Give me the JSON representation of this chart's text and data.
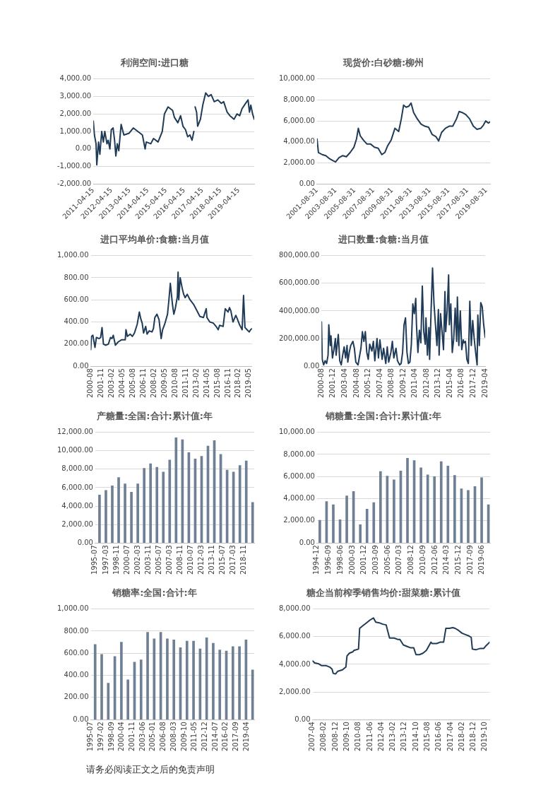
{
  "chart_data": [
    {
      "type": "line",
      "title": "利润空间:进口糖",
      "color": "#1f3b57",
      "grid": "y",
      "x": [
        "2011-04-15",
        "2011-05-07",
        "2011-06-09",
        "2011-06-24",
        "2011-07-29",
        "2011-08-25",
        "2011-10-01",
        "2011-11-03",
        "2011-12-02",
        "2012-01-15",
        "2012-02-10",
        "2012-03-13",
        "2012-04-11",
        "2012-05-17",
        "2012-06-16",
        "2012-07-11",
        "2012-08-10",
        "2012-09-09",
        "2012-10-26",
        "2012-12-20",
        "2013-04-04",
        "2013-06-27",
        "2013-09-27",
        "2013-12-27",
        "2014-02-21",
        "2014-03-13",
        "2014-06-13",
        "2014-08-07",
        "2014-11-07",
        "2015-01-30",
        "2015-03-13",
        "2015-05-25",
        "2015-08-25",
        "2015-10-01",
        "2015-12-09",
        "2016-02-03",
        "2016-03-20",
        "2016-05-10",
        "2016-06-24",
        "2016-08-07",
        "2016-09-20",
        "2016-10-26",
        "2016-11-10",
        "2016-11-21",
        "2016-12-20",
        "2017-01-11",
        "2017-03-06",
        "2017-04-22",
        "2017-06-20",
        "2017-08-14",
        "2017-10-08",
        "2017-12-09",
        "2018-02-21",
        "2018-04-30",
        "2018-06-16",
        "2018-08-25",
        "2018-10-19",
        "2019-01-11",
        "2019-03-09",
        "2019-05-03",
        "2019-06-20",
        "2019-08-29",
        "2019-10-19",
        "2019-11-17",
        "2019-12-13",
        "2020-01-19",
        "2020-02-21"
      ],
      "values": [
        1600,
        800,
        300,
        -900,
        400,
        -300,
        1000,
        400,
        1000,
        300,
        500,
        0,
        1100,
        1200,
        500,
        -400,
        300,
        -100,
        1400,
        800,
        900,
        1200,
        1000,
        800,
        0,
        400,
        300,
        600,
        400,
        1000,
        2000,
        2400,
        2200,
        1800,
        1500,
        1900,
        1300,
        1100,
        700,
        800,
        500,
        1000,
        null,
        2400,
        2100,
        1300,
        1700,
        2500,
        3200,
        3000,
        3100,
        2700,
        2800,
        2600,
        2700,
        2100,
        1900,
        1700,
        2000,
        1900,
        2300,
        2600,
        2800,
        2100,
        2500,
        2000,
        1700
      ],
      "xlim": [
        "2011-04-15",
        "2020-02-21"
      ],
      "xticks": [
        "2011-04-15",
        "2012-04-15",
        "2013-04-15",
        "2014-04-15",
        "2015-04-15",
        "2016-04-15",
        "2017-04-15",
        "2018-04-15",
        "2019-04-15"
      ],
      "ylim": [
        -2000,
        4000
      ],
      "yticks": [
        {
          "value": -2000,
          "label": "-2,000.00"
        },
        {
          "value": -1000,
          "label": "-1,000.00"
        },
        {
          "value": 0,
          "label": "0.00"
        },
        {
          "value": 1000,
          "label": "1,000.00"
        },
        {
          "value": 2000,
          "label": "2,000.00"
        },
        {
          "value": 3000,
          "label": "3,000.00"
        },
        {
          "value": 4000,
          "label": "4,000.00"
        }
      ]
    },
    {
      "type": "line",
      "title": "现货价:白砂糖:柳州",
      "color": "#1f3b57",
      "grid": "y",
      "x": [
        "2001-08-31",
        "2001-10-26",
        "2002-03-20",
        "2002-08-10",
        "2003-01-04",
        "2003-05-28",
        "2003-08-21",
        "2004-01-01",
        "2004-05-25",
        "2004-10-15",
        "2005-03-09",
        "2005-08-03",
        "2005-11-14",
        "2006-01-22",
        "2006-04-04",
        "2006-07-29",
        "2006-12-24",
        "2007-05-14",
        "2007-10-08",
        "2008-03-02",
        "2008-07-22",
        "2008-11-17",
        "2009-02-28",
        "2009-07-22",
        "2009-12-13",
        "2010-05-07",
        "2010-08-18",
        "2010-11-14",
        "2011-02-21",
        "2011-06-02",
        "2011-08-31",
        "2011-12-09",
        "2012-04-29",
        "2012-09-23",
        "2013-02-17",
        "2013-07-11",
        "2013-12-02",
        "2014-04-26",
        "2014-08-07",
        "2014-11-28",
        "2015-04-22",
        "2015-09-16",
        "2016-02-07",
        "2016-07-01",
        "2016-10-11",
        "2017-02-07",
        "2017-06-27",
        "2017-11-21",
        "2018-04-15",
        "2018-09-05",
        "2019-01-30",
        "2019-05-10",
        "2019-08-07",
        "2019-11-14",
        "2020-01-26"
      ],
      "values": [
        4300,
        3000,
        2800,
        2700,
        2400,
        2200,
        2100,
        2500,
        2700,
        2600,
        3000,
        3500,
        4300,
        5300,
        4600,
        4200,
        3800,
        3800,
        3500,
        3400,
        2800,
        3000,
        3600,
        4200,
        5300,
        5000,
        6200,
        7500,
        7300,
        7400,
        7700,
        6800,
        6200,
        5700,
        5500,
        5400,
        4700,
        4500,
        4100,
        4900,
        5300,
        5500,
        5500,
        6200,
        6900,
        6800,
        6600,
        6200,
        5500,
        5200,
        5300,
        5600,
        6000,
        5800,
        5900
      ],
      "xlim": [
        "2001-08-31",
        "2020-01-26"
      ],
      "xticks": [
        "2001-08-31",
        "2003-08-31",
        "2005-08-31",
        "2007-08-31",
        "2009-08-31",
        "2011-08-31",
        "2013-08-31",
        "2015-08-31",
        "2017-08-31",
        "2019-08-31"
      ],
      "ylim": [
        0,
        10000
      ],
      "yticks": [
        {
          "value": 0,
          "label": "0.00"
        },
        {
          "value": 2000,
          "label": "2,000.00"
        },
        {
          "value": 4000,
          "label": "4,000.00"
        },
        {
          "value": 6000,
          "label": "6,000.00"
        },
        {
          "value": 8000,
          "label": "8,000.00"
        },
        {
          "value": 10000,
          "label": "10,000.00"
        }
      ]
    },
    {
      "type": "line",
      "title": "进口平均单价:食糖:当月值",
      "color": "#1f3b57",
      "grid": "y",
      "x": [
        "2000-08",
        "2000-09",
        "2000-11",
        "2001-02",
        "2001-04",
        "2001-08",
        "2001-10",
        "2001-12",
        "2002-02",
        "2002-05",
        "2002-09",
        "2002-12",
        "2003-02",
        "2003-04",
        "2003-07",
        "2003-11",
        "2004-04",
        "2004-09",
        "2004-10",
        "2004-12",
        "2005-04",
        "2005-07",
        "2005-10",
        "2006-02",
        "2006-05",
        "2006-07",
        "2006-09",
        "2006-11",
        "2007-02",
        "2007-04",
        "2007-07",
        "2007-11",
        "2008-01",
        "2008-03",
        "2008-06",
        "2008-09",
        "2008-12",
        "2009-02",
        "2009-05",
        "2009-09",
        "2009-11",
        "2010-01",
        "2010-04",
        "2010-06",
        "2010-08",
        "2010-11",
        "2010-12",
        "2011-01",
        "2011-03",
        "2011-06",
        "2011-08",
        "2011-10",
        "2012-01",
        "2012-05",
        "2012-10",
        "2013-03",
        "2013-07",
        "2013-12",
        "2014-04",
        "2014-05",
        "2014-09",
        "2015-02",
        "2015-06",
        "2015-09",
        "2015-11",
        "2016-04",
        "2016-07",
        "2016-11",
        "2017-01",
        "2017-03",
        "2017-06",
        "2017-10",
        "2017-12",
        "2018-03",
        "2018-07",
        "2018-09",
        "2018-11",
        "2019-02",
        "2019-05",
        "2019-07",
        "2019-09"
      ],
      "values": [
        150,
        270,
        280,
        170,
        260,
        250,
        260,
        350,
        200,
        190,
        200,
        260,
        250,
        280,
        190,
        220,
        240,
        240,
        330,
        270,
        290,
        270,
        300,
        380,
        490,
        430,
        390,
        300,
        360,
        290,
        320,
        310,
        340,
        440,
        470,
        420,
        250,
        330,
        380,
        470,
        600,
        750,
        560,
        470,
        520,
        630,
        850,
        600,
        800,
        700,
        650,
        620,
        650,
        600,
        560,
        500,
        450,
        440,
        520,
        440,
        400,
        390,
        360,
        330,
        370,
        360,
        520,
        490,
        530,
        500,
        400,
        460,
        430,
        380,
        330,
        640,
        350,
        330,
        310,
        330,
        340
      ],
      "xlim": [
        "2000-08",
        "2019-09"
      ],
      "xticks": [
        "2000-08",
        "2001-11",
        "2003-02",
        "2004-05",
        "2005-08",
        "2006-11",
        "2008-02",
        "2009-05",
        "2010-08",
        "2011-11",
        "2013-02",
        "2014-05",
        "2015-08",
        "2016-11",
        "2018-02",
        "2019-05"
      ],
      "ylim": [
        0,
        1000
      ],
      "yticks": [
        {
          "value": 0,
          "label": "0.00"
        },
        {
          "value": 200,
          "label": "200.00"
        },
        {
          "value": 400,
          "label": "400.00"
        },
        {
          "value": 600,
          "label": "600.00"
        },
        {
          "value": 800,
          "label": "800.00"
        },
        {
          "value": 1000,
          "label": "1,000.00"
        }
      ]
    },
    {
      "type": "line",
      "title": "进口数量:食糖:当月值",
      "color": "#1f3b57",
      "grid": "y",
      "x": [
        "2000-08",
        "2000-09",
        "2000-11",
        "2001-01",
        "2001-03",
        "2001-05",
        "2001-06",
        "2001-08",
        "2001-09",
        "2001-11",
        "2002-01",
        "2002-03",
        "2002-04",
        "2002-07",
        "2002-09",
        "2002-11",
        "2003-01",
        "2003-03",
        "2003-05",
        "2003-07",
        "2003-08",
        "2003-10",
        "2003-12",
        "2004-03",
        "2004-05",
        "2004-07",
        "2004-10",
        "2004-12",
        "2005-02",
        "2005-04",
        "2005-06",
        "2005-08",
        "2005-10",
        "2005-12",
        "2006-02",
        "2006-05",
        "2006-07",
        "2006-09",
        "2006-12",
        "2007-02",
        "2007-04",
        "2007-07",
        "2007-09",
        "2007-12",
        "2008-02",
        "2008-04",
        "2008-07",
        "2008-09",
        "2008-11",
        "2009-02",
        "2009-04",
        "2009-07",
        "2009-09",
        "2009-11",
        "2010-01",
        "2010-03",
        "2010-05",
        "2010-07",
        "2010-09",
        "2010-11",
        "2011-01",
        "2011-03",
        "2011-05",
        "2011-06",
        "2011-08",
        "2011-10",
        "2011-12",
        "2012-02",
        "2012-04",
        "2012-06",
        "2012-07",
        "2012-09",
        "2012-11",
        "2012-12",
        "2013-02",
        "2013-04",
        "2013-06",
        "2013-08",
        "2013-10",
        "2013-12",
        "2014-01",
        "2014-03",
        "2014-05",
        "2014-07",
        "2014-09",
        "2014-10",
        "2014-12",
        "2015-02",
        "2015-03",
        "2015-05",
        "2015-07",
        "2015-09",
        "2015-11",
        "2016-01",
        "2016-02",
        "2016-04",
        "2016-06",
        "2016-08",
        "2016-10",
        "2016-11",
        "2017-01",
        "2017-03",
        "2017-05",
        "2017-07",
        "2017-09",
        "2017-11",
        "2018-01",
        "2018-03",
        "2018-05",
        "2018-06",
        "2018-08",
        "2018-10",
        "2018-12",
        "2019-02",
        "2019-04"
      ],
      "values": [
        320000,
        50000,
        10000,
        40000,
        20000,
        80000,
        300000,
        150000,
        220000,
        60000,
        120000,
        200000,
        80000,
        230000,
        40000,
        10000,
        80000,
        140000,
        60000,
        150000,
        30000,
        100000,
        150000,
        180000,
        130000,
        30000,
        10000,
        70000,
        130000,
        250000,
        180000,
        250000,
        100000,
        50000,
        160000,
        110000,
        180000,
        40000,
        200000,
        60000,
        190000,
        50000,
        130000,
        20000,
        140000,
        30000,
        100000,
        180000,
        60000,
        130000,
        40000,
        10000,
        20000,
        100000,
        300000,
        350000,
        100000,
        20000,
        30000,
        160000,
        450000,
        380000,
        490000,
        300000,
        100000,
        260000,
        170000,
        580000,
        250000,
        160000,
        350000,
        80000,
        280000,
        50000,
        400000,
        710000,
        450000,
        300000,
        150000,
        410000,
        80000,
        380000,
        250000,
        120000,
        540000,
        250000,
        400000,
        660000,
        300000,
        450000,
        100000,
        200000,
        420000,
        180000,
        500000,
        150000,
        400000,
        120000,
        190000,
        170000,
        180000,
        50000,
        20000,
        470000,
        150000,
        330000,
        200000,
        100000,
        10000,
        370000,
        150000,
        460000,
        430000,
        300000,
        210000
      ],
      "xlim": [
        "2000-08",
        "2019-04"
      ],
      "xticks": [
        "2000-08",
        "2001-12",
        "2003-04",
        "2004-08",
        "2005-12",
        "2007-04",
        "2008-08",
        "2009-12",
        "2011-04",
        "2012-08",
        "2013-12",
        "2015-04",
        "2016-08",
        "2017-12",
        "2019-04"
      ],
      "ylim": [
        0,
        800000
      ],
      "yticks": [
        {
          "value": 0,
          "label": "0.00"
        },
        {
          "value": 200000,
          "label": "200,000.00"
        },
        {
          "value": 400000,
          "label": "400,000.00"
        },
        {
          "value": 600000,
          "label": "600,000.00"
        },
        {
          "value": 800000,
          "label": "800,000.00"
        }
      ]
    },
    {
      "type": "bar",
      "title": "产糖量:全国:合计:累计值:年",
      "color": "#6f7f94",
      "grid": "y",
      "x": [
        "1996-03",
        "1997-03",
        "1998-03",
        "1999-03",
        "2000-03",
        "2001-03",
        "2002-03",
        "2003-03",
        "2004-03",
        "2005-03",
        "2006-03",
        "2007-03",
        "2008-03",
        "2009-03",
        "2010-03",
        "2011-03",
        "2012-03",
        "2013-03",
        "2014-03",
        "2015-03",
        "2016-03",
        "2017-03",
        "2018-03",
        "2019-03",
        "2020-03"
      ],
      "values": [
        5200,
        5700,
        6200,
        7100,
        6400,
        5500,
        6400,
        8100,
        8600,
        8200,
        7700,
        9000,
        11400,
        11200,
        9800,
        9100,
        9400,
        10500,
        11100,
        9600,
        7900,
        7700,
        8400,
        8900,
        4400
      ],
      "xlim": [
        "1995-07",
        "2020-06"
      ],
      "xticks": [
        "1995-07",
        "1997-03",
        "1998-11",
        "2000-07",
        "2002-03",
        "2003-11",
        "2005-07",
        "2007-03",
        "2008-11",
        "2010-07",
        "2012-03",
        "2013-11",
        "2015-07",
        "2017-03",
        "2018-11"
      ],
      "ylim": [
        0,
        12000
      ],
      "yticks": [
        {
          "value": 0,
          "label": "0.00"
        },
        {
          "value": 2000,
          "label": "2,000.00"
        },
        {
          "value": 4000,
          "label": "4,000.00"
        },
        {
          "value": 6000,
          "label": "6,000.00"
        },
        {
          "value": 8000,
          "label": "8,000.00"
        },
        {
          "value": 10000,
          "label": "10,000.00"
        },
        {
          "value": 12000,
          "label": "12,000.00"
        }
      ]
    },
    {
      "type": "bar",
      "title": "销糖量:全国:合计:累计值:年",
      "color": "#6f7f94",
      "grid": "y",
      "x": [
        "1995-05",
        "1996-05",
        "1997-05",
        "1998-05",
        "1999-05",
        "2000-05",
        "2001-05",
        "2002-05",
        "2003-05",
        "2004-05",
        "2005-05",
        "2006-05",
        "2007-05",
        "2008-05",
        "2009-05",
        "2010-05",
        "2011-05",
        "2012-05",
        "2013-05",
        "2014-05",
        "2015-05",
        "2016-05",
        "2017-05",
        "2018-05",
        "2019-05",
        "2020-05"
      ],
      "values": [
        2050,
        3750,
        3450,
        2100,
        4250,
        4650,
        1650,
        3050,
        3650,
        6450,
        6050,
        5700,
        6500,
        7650,
        7450,
        6800,
        6150,
        6000,
        7350,
        6950,
        6100,
        4900,
        4750,
        5100,
        5900,
        3450
      ],
      "xlim": [
        "1994-12",
        "2020-08"
      ],
      "xticks": [
        "1994-12",
        "1996-09",
        "1998-06",
        "2000-03",
        "2001-12",
        "2003-09",
        "2005-06",
        "2007-03",
        "2008-12",
        "2010-09",
        "2012-06",
        "2014-03",
        "2015-12",
        "2017-09",
        "2019-06"
      ],
      "ylim": [
        0,
        10000
      ],
      "yticks": [
        {
          "value": 0,
          "label": "0.00"
        },
        {
          "value": 2000,
          "label": "2,000.00"
        },
        {
          "value": 4000,
          "label": "4,000.00"
        },
        {
          "value": 6000,
          "label": "6,000.00"
        },
        {
          "value": 8000,
          "label": "8,000.00"
        },
        {
          "value": 10000,
          "label": "10,000.00"
        }
      ]
    },
    {
      "type": "bar",
      "title": "销糖率:全国:合计:年",
      "color": "#6f7f94",
      "grid": "y",
      "x": [
        "1996-03",
        "1997-03",
        "1998-03",
        "1999-03",
        "2000-03",
        "2001-03",
        "2002-03",
        "2003-03",
        "2004-03",
        "2005-03",
        "2006-03",
        "2007-03",
        "2008-03",
        "2009-03",
        "2010-03",
        "2011-03",
        "2012-03",
        "2013-03",
        "2014-03",
        "2015-03",
        "2016-03",
        "2017-03",
        "2018-03",
        "2019-03",
        "2020-03"
      ],
      "values": [
        680,
        590,
        330,
        570,
        700,
        360,
        520,
        540,
        790,
        730,
        790,
        730,
        720,
        650,
        710,
        710,
        640,
        740,
        690,
        630,
        620,
        660,
        660,
        720,
        450
      ],
      "xlim": [
        "1995-07",
        "2020-06"
      ],
      "xticks": [
        "1995-07",
        "1997-02",
        "1998-09",
        "2000-04",
        "2001-11",
        "2003-06",
        "2005-01",
        "2006-08",
        "2008-03",
        "2009-10",
        "2011-05",
        "2012-12",
        "2014-07",
        "2016-02",
        "2017-09",
        "2019-04"
      ],
      "ylim": [
        0,
        1000
      ],
      "yticks": [
        {
          "value": 0,
          "label": "0.00"
        },
        {
          "value": 200,
          "label": "200.00"
        },
        {
          "value": 400,
          "label": "400.00"
        },
        {
          "value": 600,
          "label": "600.00"
        },
        {
          "value": 800,
          "label": "800.00"
        },
        {
          "value": 1000,
          "label": "1,000.00"
        }
      ]
    },
    {
      "type": "line",
      "title": "糖企当前榨季销售均价:甜菜糖:累计值",
      "color": "#1f3b57",
      "grid": "y",
      "annotations": [
        "请务必阅读正文之后的免责声明"
      ],
      "x": [
        "2007-04",
        "2007-06",
        "2007-09",
        "2007-12",
        "2008-04",
        "2008-07",
        "2008-09",
        "2008-10",
        "2008-12",
        "2009-02",
        "2009-06",
        "2009-09",
        "2009-10",
        "2009-12",
        "2010-03",
        "2010-04",
        "2010-08",
        "2010-09",
        "2010-12",
        "2011-03",
        "2011-06",
        "2011-09",
        "2011-11",
        "2012-02",
        "2012-05",
        "2012-08",
        "2012-11",
        "2013-03",
        "2013-06",
        "2013-08",
        "2013-11",
        "2014-02",
        "2014-05",
        "2014-08",
        "2014-10",
        "2015-01",
        "2015-04",
        "2015-07",
        "2015-09",
        "2015-11",
        "2015-12",
        "2016-04",
        "2016-07",
        "2016-10",
        "2016-12",
        "2017-03",
        "2017-06",
        "2017-08",
        "2017-11",
        "2018-02",
        "2018-05",
        "2018-08",
        "2018-10",
        "2018-11",
        "2019-02",
        "2019-06",
        "2019-09",
        "2019-11",
        "2020-02"
      ],
      "values": [
        4250,
        4100,
        4050,
        3900,
        3900,
        3800,
        3650,
        3350,
        3300,
        3500,
        3600,
        3800,
        4600,
        4800,
        4900,
        5000,
        5100,
        6600,
        6800,
        7000,
        7200,
        7350,
        7050,
        7000,
        6900,
        6850,
        5900,
        5900,
        5800,
        5800,
        5400,
        5300,
        5200,
        5200,
        4700,
        4700,
        4800,
        5000,
        5300,
        5600,
        5500,
        5500,
        5600,
        5600,
        6600,
        6600,
        6650,
        6600,
        6450,
        6250,
        6150,
        6050,
        5950,
        5100,
        5050,
        5150,
        5150,
        5350,
        5600
      ],
      "xlim": [
        "2007-04",
        "2020-02"
      ],
      "xticks": [
        "2007-04",
        "2008-02",
        "2008-12",
        "2009-10",
        "2010-08",
        "2011-06",
        "2012-04",
        "2013-02",
        "2013-12",
        "2014-10",
        "2015-08",
        "2016-06",
        "2017-04",
        "2018-02",
        "2018-12",
        "2019-10"
      ],
      "ylim": [
        0,
        8000
      ],
      "yticks": [
        {
          "value": 0,
          "label": "0.00"
        },
        {
          "value": 2000,
          "label": "2,000.00"
        },
        {
          "value": 4000,
          "label": "4,000.00"
        },
        {
          "value": 6000,
          "label": "6,000.00"
        },
        {
          "value": 8000,
          "label": "8,000.00"
        }
      ]
    }
  ]
}
